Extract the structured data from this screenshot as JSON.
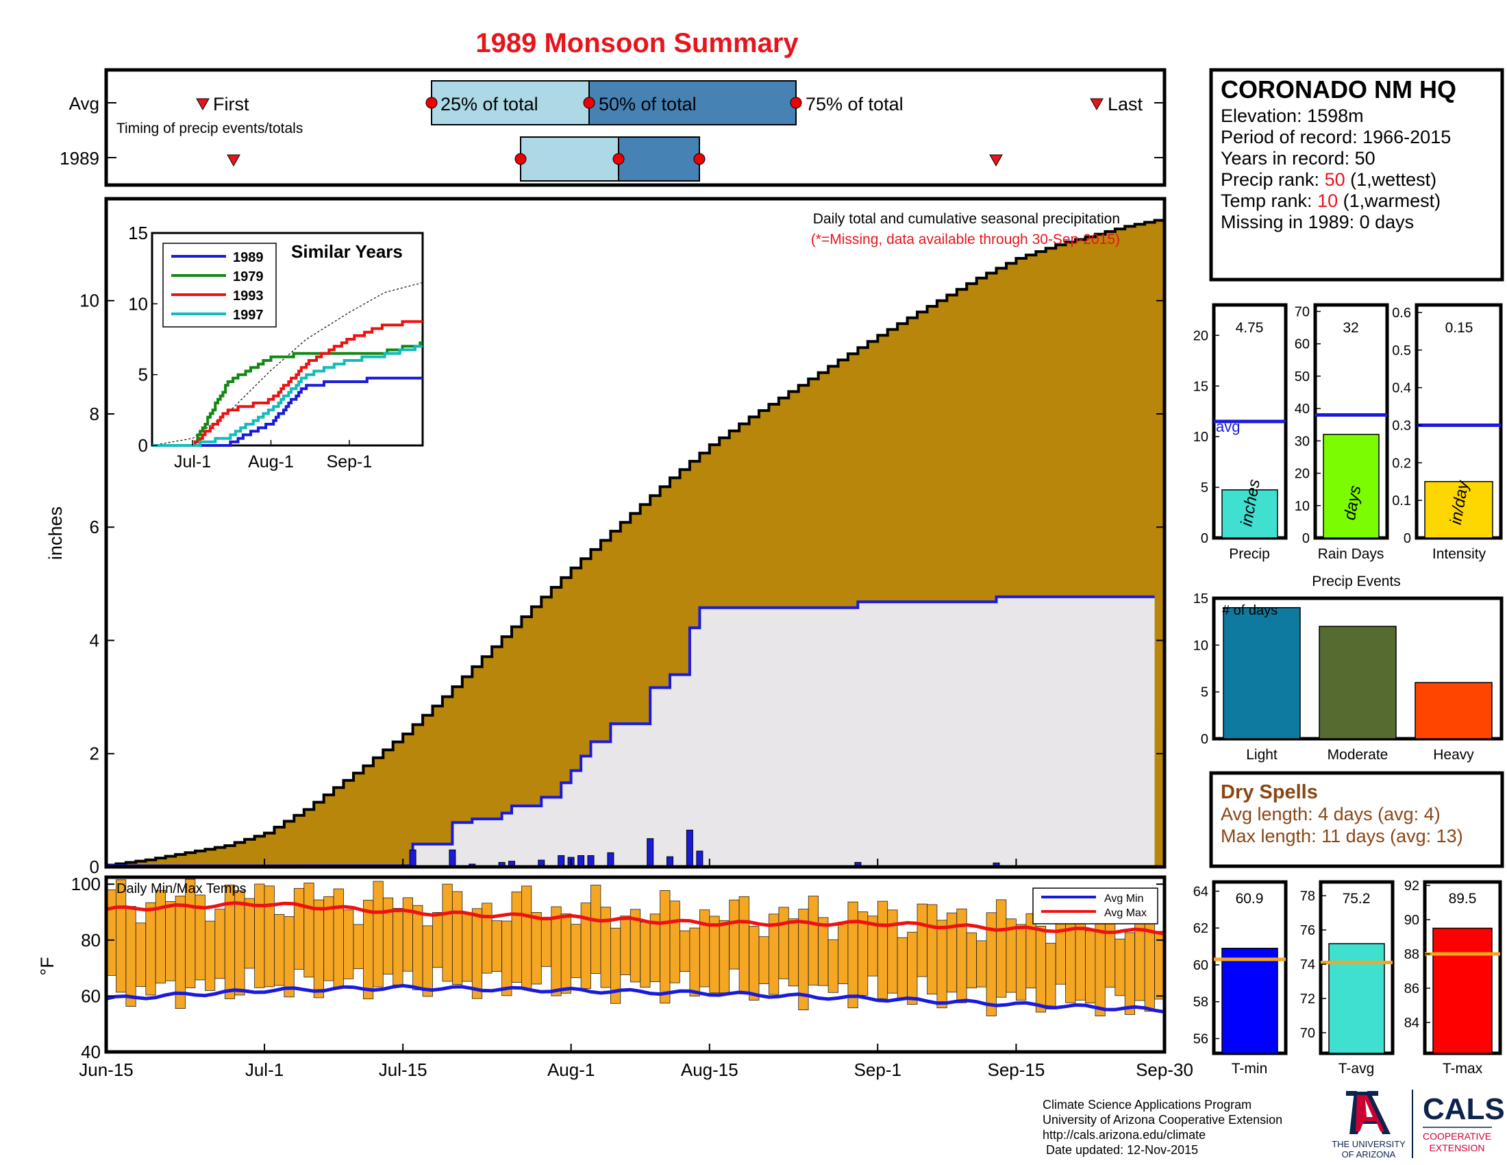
{
  "title": "1989 Monsoon Summary",
  "timing": {
    "row_avg": "Avg",
    "row_year": "1989",
    "first_label": "First",
    "last_label": "Last",
    "caption": "Timing of precip events/totals",
    "p25_label": "25% of total",
    "p50_label": "50% of total",
    "p75_label": "75% of total"
  },
  "station": {
    "name": "CORONADO NM HQ",
    "elevation_label": "Elevation: ",
    "elevation": "1598m",
    "period_label": "Period of record: ",
    "period": "1966-2015",
    "years_label": "Years in record: ",
    "years": "50",
    "precip_rank_label": "Precip rank: ",
    "precip_rank": "50",
    "precip_rank_note": " (1,wettest)",
    "temp_rank_label": "Temp rank: ",
    "temp_rank": "10",
    "temp_rank_note": " (1,warmest)",
    "missing": "Missing in 1989: 0 days"
  },
  "main_chart": {
    "title": "Daily total and cumulative seasonal precipitation",
    "note": "(*=Missing, data available through 30-Sep-2015)",
    "ylabel": "inches",
    "y_ticks": [
      "0",
      "2",
      "4",
      "6",
      "8",
      "10"
    ],
    "inset_title": "Similar Years",
    "inset_y_ticks": [
      "0",
      "5",
      "10",
      "15"
    ],
    "inset_x_ticks": [
      "Jul-1",
      "Aug-1",
      "Sep-1"
    ],
    "inset_legend": [
      "1989",
      "1979",
      "1993",
      "1997"
    ]
  },
  "temp_chart": {
    "title": "Daily Min/Max Temps",
    "ylabel": "°F",
    "y_ticks": [
      "40",
      "60",
      "80",
      "100"
    ],
    "legend_min": "Avg Min",
    "legend_max": "Avg Max",
    "x_ticks": [
      "Jun-15",
      "Jul-1",
      "Jul-15",
      "Aug-1",
      "Aug-15",
      "Sep-1",
      "Sep-15",
      "Sep-30"
    ]
  },
  "summary_bars": {
    "precip": {
      "label": "Precip",
      "value": "4.75",
      "unit": "inches",
      "avg_label": "avg",
      "ticks": [
        "0",
        "5",
        "10",
        "15",
        "20"
      ]
    },
    "raindays": {
      "label": "Rain Days",
      "value": "32",
      "unit": "days",
      "ticks": [
        "0",
        "10",
        "20",
        "30",
        "40",
        "50",
        "60",
        "70"
      ]
    },
    "intensity": {
      "label": "Intensity",
      "value": "0.15",
      "unit": "in/day",
      "ticks": [
        "0",
        "0.1",
        "0.2",
        "0.3",
        "0.4",
        "0.5",
        "0.6"
      ]
    }
  },
  "events": {
    "title": "Precip Events",
    "ylabel": "# of days",
    "ticks": [
      "0",
      "5",
      "10",
      "15"
    ],
    "categories": [
      "Light",
      "Moderate",
      "Heavy"
    ]
  },
  "dry_spells": {
    "title": "Dry Spells",
    "avg_line": "Avg length: 4 days (avg: 4)",
    "max_line": "Max length: 11 days (avg: 13)"
  },
  "temp_bars": {
    "tmin": {
      "label": "T-min",
      "value": "60.9",
      "ticks": [
        "56",
        "58",
        "60",
        "62",
        "64"
      ]
    },
    "tavg": {
      "label": "T-avg",
      "value": "75.2",
      "ticks": [
        "70",
        "72",
        "74",
        "76",
        "78"
      ]
    },
    "tmax": {
      "label": "T-max",
      "value": "89.5",
      "ticks": [
        "84",
        "86",
        "88",
        "90",
        "92"
      ]
    }
  },
  "footer": {
    "line1": "Climate Science Applications Program",
    "line2": "University of Arizona Cooperative Extension",
    "line3": "http://cals.arizona.edu/climate",
    "line4": " Date updated: 12-Nov-2015",
    "ua_line1": "THE UNIVERSITY",
    "ua_line2": "OF ARIZONA",
    "cals": "CALS",
    "cals_line1": "COOPERATIVE",
    "cals_line2": "EXTENSION"
  },
  "colors": {
    "title": "#e8141b",
    "avg_fill": "#b8860b",
    "year_fill": "#e8e6e8",
    "year_line": "#1a1adb",
    "temp_bar": "#f5a623",
    "avg_max_line": "#ee1111",
    "avg_min_line": "#1a1adb",
    "dry_spells": "#8b4513"
  },
  "chart_data": [
    {
      "type": "area",
      "title": "Daily total and cumulative seasonal precipitation",
      "ylabel": "inches",
      "ylim": [
        0,
        11.8
      ],
      "x": [
        "Jun-15",
        "Jul-1",
        "Jul-15",
        "Aug-1",
        "Aug-15",
        "Sep-1",
        "Sep-15",
        "Sep-30"
      ],
      "series": [
        {
          "values": [
            0,
            0.5,
            2.3,
            5.3,
            7.5,
            9.4,
            10.8,
            11.5
          ]
        },
        {
          "name": "1989",
          "values": [
            0,
            0.02,
            0.1,
            1.6,
            4.3,
            4.5,
            4.75,
            4.75
          ]
        }
      ],
      "daily_1989": [
        {
          "x": "Jul-16",
          "y": 0.3
        },
        {
          "x": "Jul-20",
          "y": 0.3
        },
        {
          "x": "Jul-22",
          "y": 0.05
        },
        {
          "x": "Jul-25",
          "y": 0.08
        },
        {
          "x": "Jul-26",
          "y": 0.1
        },
        {
          "x": "Jul-29",
          "y": 0.12
        },
        {
          "x": "Jul-31",
          "y": 0.2
        },
        {
          "x": "Aug-1",
          "y": 0.17
        },
        {
          "x": "Aug-2",
          "y": 0.2
        },
        {
          "x": "Aug-3",
          "y": 0.2
        },
        {
          "x": "Aug-5",
          "y": 0.25
        },
        {
          "x": "Aug-9",
          "y": 0.5
        },
        {
          "x": "Aug-11",
          "y": 0.18
        },
        {
          "x": "Aug-13",
          "y": 0.65
        },
        {
          "x": "Aug-14",
          "y": 0.28
        },
        {
          "x": "Aug-30",
          "y": 0.08
        },
        {
          "x": "Sep-13",
          "y": 0.07
        }
      ],
      "legend_position": "none",
      "grid": false
    },
    {
      "type": "line",
      "title": "Similar Years",
      "ylim": [
        0,
        15
      ],
      "x": [
        "Jun-15",
        "Jul-1",
        "Jul-15",
        "Aug-1",
        "Aug-15",
        "Sep-1",
        "Sep-15",
        "Sep-30"
      ],
      "series": [
        {
          "name": "1989",
          "values": [
            0,
            0,
            0.1,
            1.6,
            4.3,
            4.5,
            4.75,
            4.75
          ]
        },
        {
          "name": "1979",
          "values": [
            0,
            0,
            4.5,
            6.2,
            6.5,
            6.5,
            6.6,
            7.2
          ]
        },
        {
          "name": "1993",
          "values": [
            0,
            0,
            2.5,
            3.2,
            5.8,
            7.5,
            8.5,
            8.8
          ]
        },
        {
          "name": "1997",
          "values": [
            0,
            0,
            0.6,
            2.5,
            5.0,
            6.0,
            6.4,
            7.0
          ]
        }
      ],
      "legend_position": "top-left"
    },
    {
      "type": "bar",
      "title": "Daily Min/Max Temps",
      "ylabel": "°F",
      "ylim": [
        40,
        100
      ],
      "x_range": [
        "Jun-15",
        "Sep-30"
      ],
      "avg_min": [
        59,
        62,
        63,
        62,
        61,
        59,
        57,
        55
      ],
      "avg_max": [
        91,
        93,
        90,
        88,
        86,
        86,
        84,
        83
      ],
      "legend_position": "top-right"
    },
    {
      "type": "bar",
      "categories": [
        "Precip",
        "Rain Days",
        "Intensity"
      ],
      "values": [
        4.75,
        32,
        0.15
      ],
      "averages": [
        11.5,
        38,
        0.3
      ],
      "ylims": [
        [
          0,
          23
        ],
        [
          0,
          72
        ],
        [
          0,
          0.62
        ]
      ]
    },
    {
      "type": "bar",
      "title": "Precip Events",
      "ylabel": "# of days",
      "categories": [
        "Light",
        "Moderate",
        "Heavy"
      ],
      "values": [
        14,
        12,
        6
      ],
      "ylim": [
        0,
        15
      ]
    },
    {
      "type": "bar",
      "categories": [
        "T-min",
        "T-avg",
        "T-max"
      ],
      "values": [
        60.9,
        75.2,
        89.5
      ],
      "averages": [
        60.3,
        74.1,
        88.0
      ],
      "ylims": [
        [
          55.2,
          64.5
        ],
        [
          68.8,
          78.8
        ],
        [
          82.2,
          92.2
        ]
      ]
    }
  ]
}
